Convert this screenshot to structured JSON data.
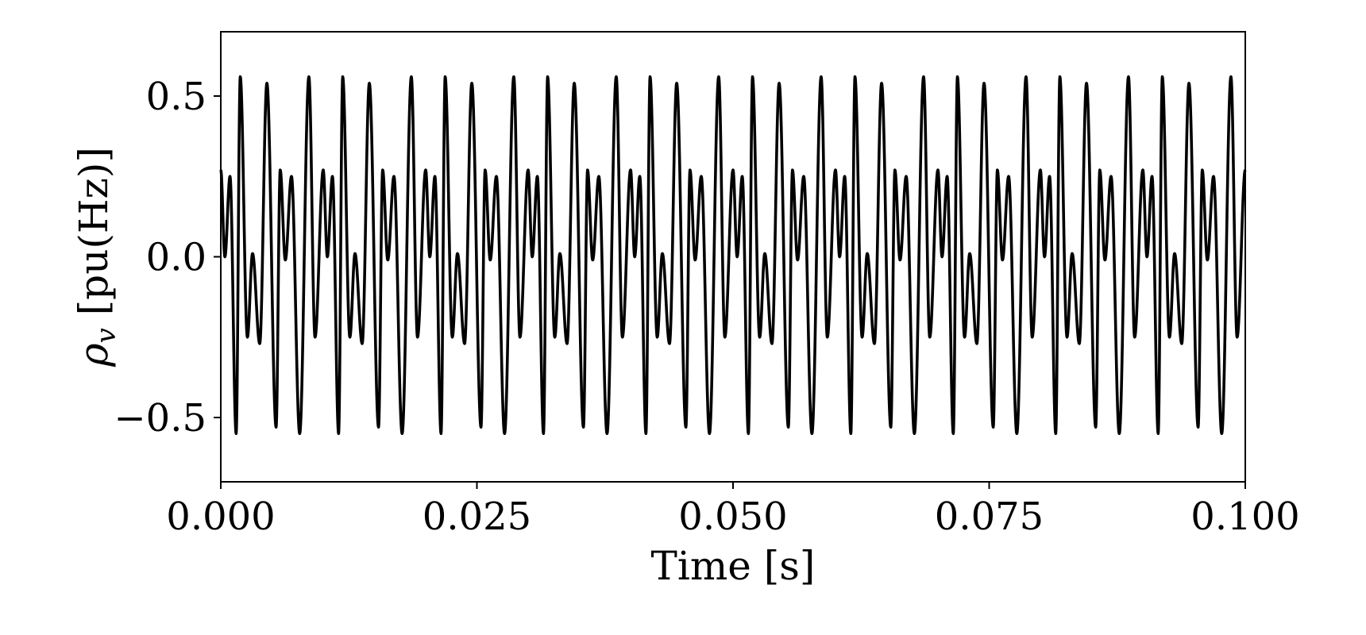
{
  "chart_data": {
    "type": "line",
    "title": "",
    "xlabel": "Time [s]",
    "ylabel_symbol": "ρ",
    "ylabel_subscript": "v",
    "ylabel_unit": " [pu(Hz)]",
    "xlim": [
      0.0,
      0.1
    ],
    "ylim": [
      -0.7,
      0.7
    ],
    "xticks": [
      0.0,
      0.025,
      0.05,
      0.075,
      0.1
    ],
    "xtick_labels": [
      "0.000",
      "0.025",
      "0.050",
      "0.075",
      "0.100"
    ],
    "yticks": [
      -0.5,
      0.0,
      0.5
    ],
    "ytick_labels": [
      "−0.5",
      "0.0",
      "0.5"
    ],
    "grid": false,
    "legend": "none",
    "line_color": "#000000",
    "series": [
      {
        "color": "#000000",
        "period": 0.01,
        "x": [
          0.0,
          0.0004,
          0.0009,
          0.0015,
          0.0019,
          0.0026,
          0.0031,
          0.0038,
          0.0045,
          0.0054,
          0.0058,
          0.0063,
          0.0069,
          0.0077,
          0.0086,
          0.0092,
          0.01
        ],
        "y": [
          0.27,
          0.0,
          0.25,
          -0.55,
          0.56,
          -0.25,
          0.01,
          -0.27,
          0.54,
          -0.53,
          0.27,
          -0.01,
          0.25,
          -0.55,
          0.56,
          -0.25,
          0.27
        ]
      }
    ]
  }
}
